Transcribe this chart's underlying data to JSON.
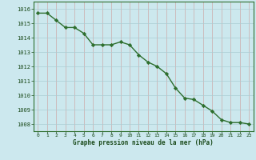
{
  "x": [
    0,
    1,
    2,
    3,
    4,
    5,
    6,
    7,
    8,
    9,
    10,
    11,
    12,
    13,
    14,
    15,
    16,
    17,
    18,
    19,
    20,
    21,
    22,
    23
  ],
  "y": [
    1015.7,
    1015.7,
    1015.2,
    1014.7,
    1014.7,
    1014.3,
    1013.5,
    1013.5,
    1013.5,
    1013.7,
    1013.5,
    1012.8,
    1012.3,
    1012.0,
    1011.5,
    1010.5,
    1009.8,
    1009.7,
    1009.3,
    1008.9,
    1008.3,
    1008.1,
    1008.1,
    1008.0
  ],
  "line_color": "#2d6e2d",
  "marker": "D",
  "marker_size": 2.2,
  "background_color": "#cce8ee",
  "grid_color": "#aaccd4",
  "xlabel": "Graphe pression niveau de la mer (hPa)",
  "xlabel_color": "#1a4a1a",
  "tick_color": "#1a4a1a",
  "ylim": [
    1007.5,
    1016.5
  ],
  "yticks": [
    1008,
    1009,
    1010,
    1011,
    1012,
    1013,
    1014,
    1015,
    1016
  ],
  "xticks": [
    0,
    1,
    2,
    3,
    4,
    5,
    6,
    7,
    8,
    9,
    10,
    11,
    12,
    13,
    14,
    15,
    16,
    17,
    18,
    19,
    20,
    21,
    22,
    23
  ],
  "line_width": 1.0,
  "spine_color": "#2d6e2d"
}
